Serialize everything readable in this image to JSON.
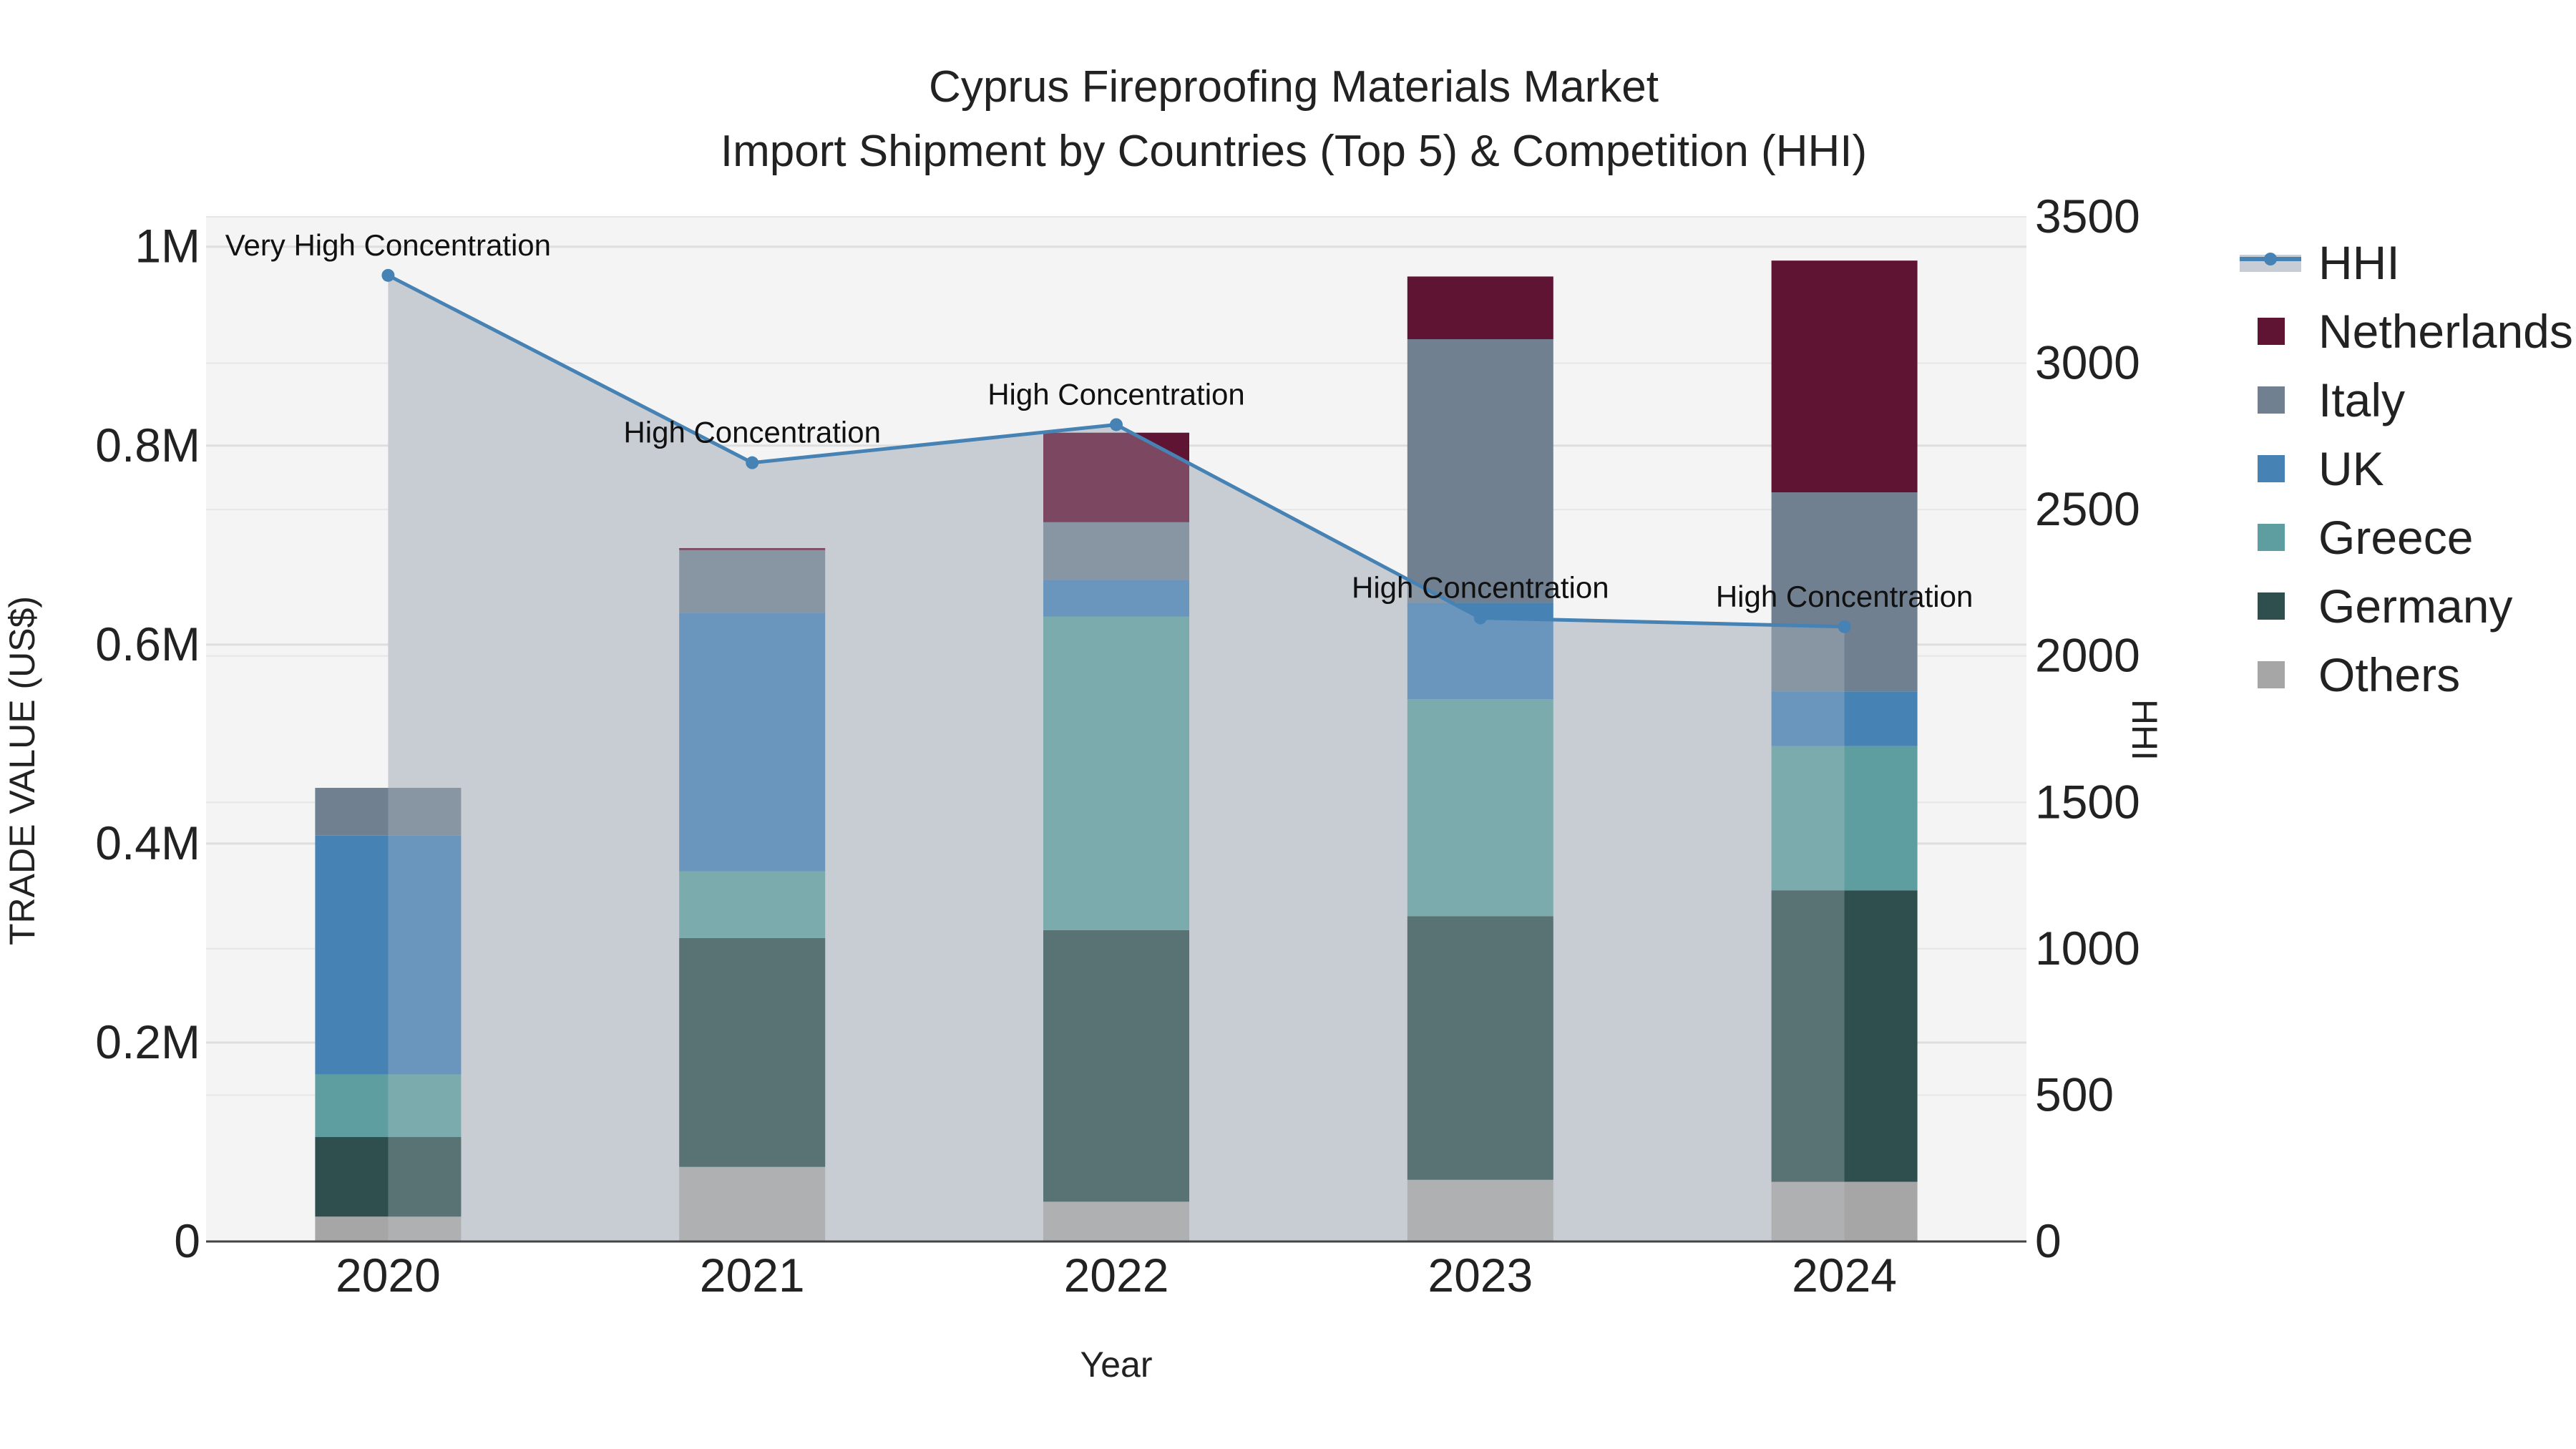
{
  "chart_data": {
    "type": "bar",
    "title": "Cyprus Fireproofing Materials Market",
    "subtitle": "Import Shipment by Countries (Top 5) & Competition (HHI)",
    "xlabel": "Year",
    "ylabel": "TRADE VALUE (US$)",
    "y2label": "HHI",
    "categories": [
      "2020",
      "2021",
      "2022",
      "2023",
      "2024"
    ],
    "ylim": [
      0,
      1030000
    ],
    "y2lim": [
      0,
      3500
    ],
    "yticks": [
      {
        "value": 0,
        "label": "0"
      },
      {
        "value": 200000,
        "label": "0.2M"
      },
      {
        "value": 400000,
        "label": "0.4M"
      },
      {
        "value": 600000,
        "label": "0.6M"
      },
      {
        "value": 800000,
        "label": "0.8M"
      },
      {
        "value": 1000000,
        "label": "1M"
      }
    ],
    "y2ticks": [
      {
        "value": 0,
        "label": "0"
      },
      {
        "value": 500,
        "label": "500"
      },
      {
        "value": 1000,
        "label": "1000"
      },
      {
        "value": 1500,
        "label": "1500"
      },
      {
        "value": 2000,
        "label": "2000"
      },
      {
        "value": 2500,
        "label": "2500"
      },
      {
        "value": 3000,
        "label": "3000"
      },
      {
        "value": 3500,
        "label": "3500"
      }
    ],
    "series": [
      {
        "name": "Others",
        "color": "#a6a6a6",
        "values": [
          25000,
          75000,
          40000,
          62000,
          60000
        ]
      },
      {
        "name": "Germany",
        "color": "#2f4f4f",
        "values": [
          80000,
          230000,
          273000,
          265000,
          293000
        ]
      },
      {
        "name": "Greece",
        "color": "#5f9ea0",
        "values": [
          63000,
          67000,
          315000,
          218000,
          145000
        ]
      },
      {
        "name": "UK",
        "color": "#4682b4",
        "values": [
          240000,
          260000,
          37000,
          97000,
          55000
        ]
      },
      {
        "name": "Italy",
        "color": "#708090",
        "values": [
          48000,
          63000,
          58000,
          265000,
          200000
        ]
      },
      {
        "name": "Netherlands",
        "color": "#5f1434",
        "values": [
          0,
          2000,
          90000,
          63000,
          233000
        ]
      }
    ],
    "hhi": {
      "name": "HHI",
      "color": "#4682b4",
      "values": [
        3300,
        2660,
        2790,
        2130,
        2100
      ],
      "labels": [
        "Very High Concentration",
        "High Concentration",
        "High Concentration",
        "High Concentration",
        "High Concentration"
      ]
    },
    "legend_order": [
      "HHI",
      "Netherlands",
      "Italy",
      "UK",
      "Greece",
      "Germany",
      "Others"
    ],
    "legend_position": "right",
    "background": "#f4f4f4",
    "grid": true
  }
}
